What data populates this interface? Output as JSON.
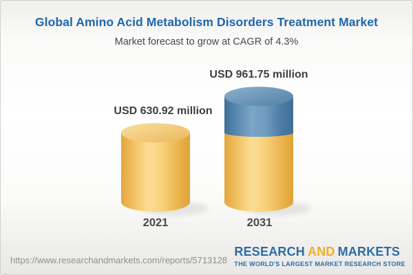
{
  "header": {
    "title": "Global Amino Acid Metabolism Disorders Treatment Market",
    "subtitle": "Market forecast to grow at CAGR of 4.3%"
  },
  "chart_data": {
    "type": "bar",
    "variant": "3d-cylinder",
    "title": "Global Amino Acid Metabolism Disorders Treatment Market",
    "subtitle": "Market forecast to grow at CAGR of 4.3%",
    "unit": "USD million",
    "cagr_percent": 4.3,
    "categories": [
      "2021",
      "2031"
    ],
    "values": [
      630.92,
      961.75
    ],
    "value_labels": [
      "USD 630.92 million",
      "USD 961.75 million"
    ],
    "segments": [
      [
        {
          "color": "gold",
          "value": 630.92
        }
      ],
      [
        {
          "color": "gold",
          "value": 630.92
        },
        {
          "color": "blue",
          "value": 330.83
        }
      ]
    ],
    "legend": "none",
    "axes": "none",
    "palette": {
      "gold": {
        "body": [
          "#e2a73e",
          "#f2c464",
          "#fcdd96",
          "#f7d07b",
          "#ecb852",
          "#e0a236"
        ],
        "top": [
          "#f9e0a2",
          "#ecb75a"
        ]
      },
      "blue": {
        "body": [
          "#40719b",
          "#5d8ab1",
          "#7ba6c8",
          "#6f9cc0",
          "#4f7ea6",
          "#3f6e98"
        ],
        "top": [
          "#8db0cc",
          "#5381a8"
        ]
      }
    }
  },
  "footer": {
    "url": "https://www.researchandmarkets.com/reports/5713128",
    "logo": {
      "part1": "RESEARCH",
      "part2": "AND",
      "part3": "MARKETS",
      "tagline": "THE WORLD'S LARGEST MARKET RESEARCH STORE",
      "blue": "#2d6ca5",
      "gold": "#f0ad27"
    }
  }
}
